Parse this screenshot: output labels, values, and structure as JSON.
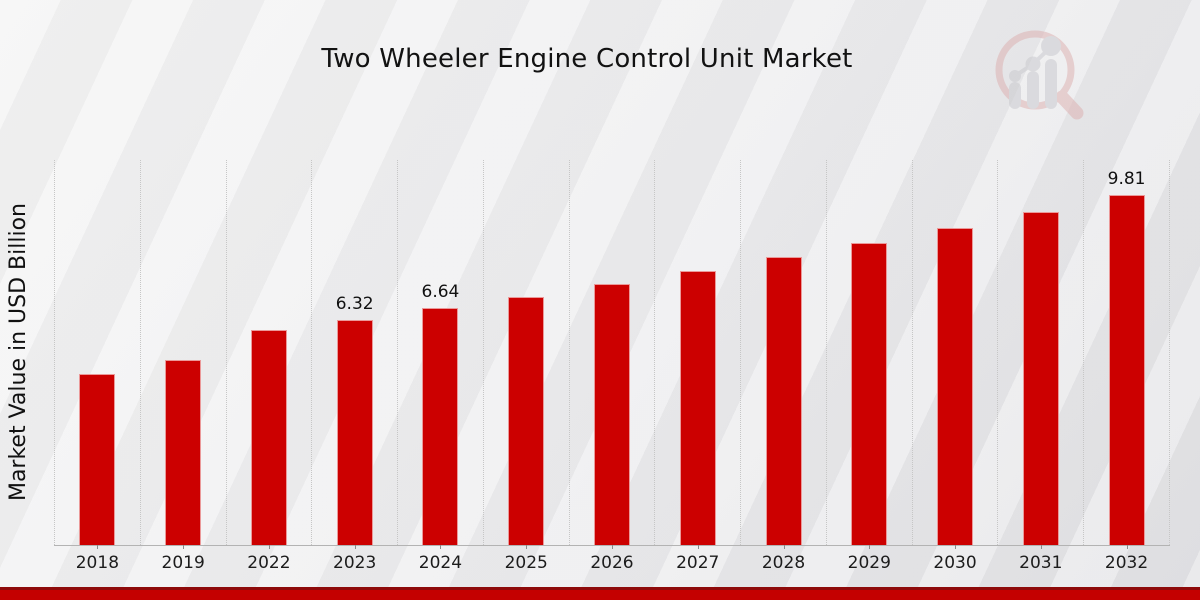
{
  "title": "Two Wheeler Engine Control Unit Market",
  "ylabel": "Market Value in USD Billion",
  "colors": {
    "bar": "#cc0000",
    "grid": "#c6c6c6",
    "axis": "#b3b3b3",
    "footer_red": "#c40000",
    "footer_dark_red": "#8e0a0a",
    "logo_ring": "#dcaeae",
    "logo_bars": "#c7c7cc"
  },
  "chart_data": {
    "type": "bar",
    "title": "Two Wheeler Engine Control Unit Market",
    "xlabel": "",
    "ylabel": "Market Value in USD Billion",
    "categories": [
      "2018",
      "2019",
      "2022",
      "2023",
      "2024",
      "2025",
      "2026",
      "2027",
      "2028",
      "2029",
      "2030",
      "2031",
      "2032"
    ],
    "values": [
      4.79,
      5.19,
      6.02,
      6.32,
      6.64,
      6.97,
      7.32,
      7.69,
      8.07,
      8.47,
      8.9,
      9.34,
      9.81
    ],
    "point_labels": [
      null,
      null,
      null,
      "6.32",
      "6.64",
      null,
      null,
      null,
      null,
      null,
      null,
      null,
      "9.81"
    ],
    "ylim": [
      0,
      10.8
    ],
    "bar_color": "#cc0000",
    "grid": "vertical-dotted",
    "legend": "none"
  }
}
